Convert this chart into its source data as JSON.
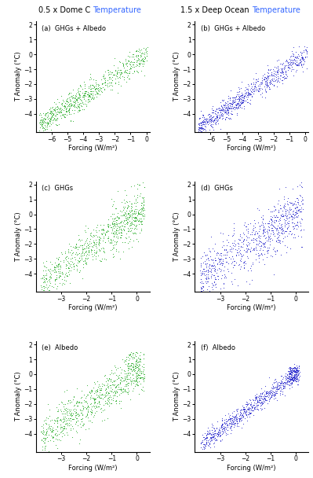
{
  "col1_title": "0.5 x Dome C Temperature",
  "col2_title": "1.5 x Deep Ocean Temperature",
  "panels": [
    {
      "label": "(a)  GHGs + Albedo",
      "col": 0,
      "row": 0,
      "xlim": [
        -7,
        0.2
      ],
      "ylim": [
        -5.2,
        2.2
      ],
      "xticks": [
        -6,
        -5,
        -4,
        -3,
        -2,
        -1,
        0
      ],
      "yticks": [
        -4,
        -3,
        -2,
        -1,
        0,
        1,
        2
      ]
    },
    {
      "label": "(b)  GHGs + Albedo",
      "col": 1,
      "row": 0,
      "xlim": [
        -7,
        0.2
      ],
      "ylim": [
        -5.2,
        2.2
      ],
      "xticks": [
        -6,
        -5,
        -4,
        -3,
        -2,
        -1,
        0
      ],
      "yticks": [
        -4,
        -3,
        -2,
        -1,
        0,
        1,
        2
      ]
    },
    {
      "label": "(c)  GHGs",
      "col": 0,
      "row": 1,
      "xlim": [
        -4,
        0.5
      ],
      "ylim": [
        -5.2,
        2.2
      ],
      "xticks": [
        -3,
        -2,
        -1,
        0
      ],
      "yticks": [
        -4,
        -3,
        -2,
        -1,
        0,
        1,
        2
      ]
    },
    {
      "label": "(d)  GHGs",
      "col": 1,
      "row": 1,
      "xlim": [
        -4,
        0.5
      ],
      "ylim": [
        -5.2,
        2.2
      ],
      "xticks": [
        -3,
        -2,
        -1,
        0
      ],
      "yticks": [
        -4,
        -3,
        -2,
        -1,
        0,
        1,
        2
      ]
    },
    {
      "label": "(e)  Albedo",
      "col": 0,
      "row": 2,
      "xlim": [
        -4,
        0.5
      ],
      "ylim": [
        -5.2,
        2.2
      ],
      "xticks": [
        -3,
        -2,
        -1,
        0
      ],
      "yticks": [
        -4,
        -3,
        -2,
        -1,
        0,
        1,
        2
      ]
    },
    {
      "label": "(f)  Albedo",
      "col": 1,
      "row": 2,
      "xlim": [
        -4,
        0.5
      ],
      "ylim": [
        -5.2,
        2.2
      ],
      "xticks": [
        -3,
        -2,
        -1,
        0
      ],
      "yticks": [
        -4,
        -3,
        -2,
        -1,
        0,
        1,
        2
      ]
    }
  ],
  "green_color": "#22AA22",
  "blue_color": "#2222CC",
  "marker_size": 2.5,
  "xlabel": "Forcing (W/m²)",
  "ylabel": "T Anomaly (°C)",
  "title_color": "#000000",
  "title_color_highlight": "#3399FF"
}
